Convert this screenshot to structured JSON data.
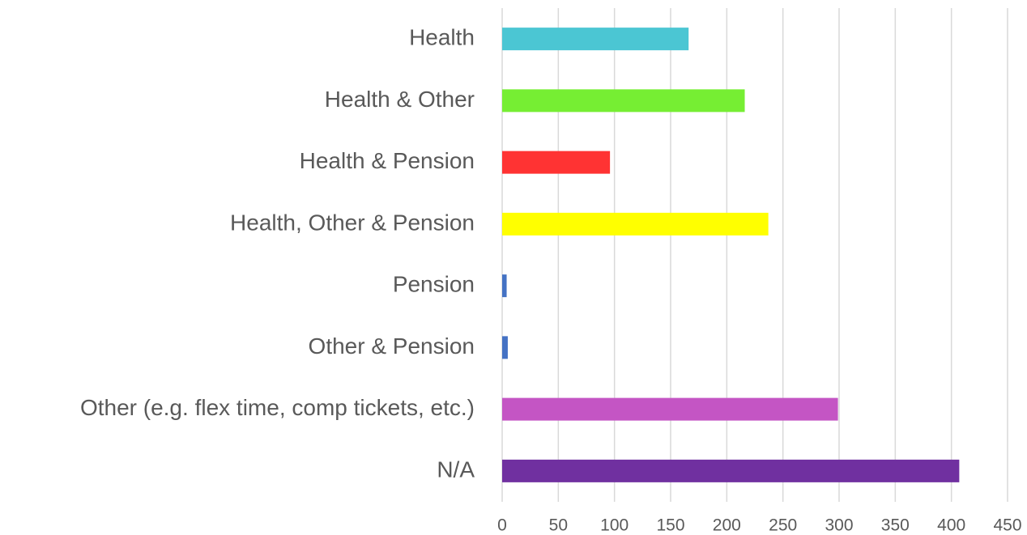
{
  "chart_data": {
    "type": "hbar",
    "categories": [
      "Health",
      "Health & Other",
      "Health & Pension",
      "Health, Other & Pension",
      "Pension",
      "Other & Pension",
      "Other (e.g. flex time, comp tickets, etc.)",
      "N/A"
    ],
    "values": [
      166,
      216,
      96,
      237,
      4,
      5,
      299,
      407
    ],
    "colors": [
      "#4bc6d3",
      "#76ee33",
      "#ff3333",
      "#ffff00",
      "#4472c4",
      "#4472c4",
      "#c455c4",
      "#7030a0"
    ],
    "xlim": [
      0,
      450
    ],
    "xticks": [
      0,
      50,
      100,
      150,
      200,
      250,
      300,
      350,
      400,
      450
    ],
    "grid": true
  }
}
